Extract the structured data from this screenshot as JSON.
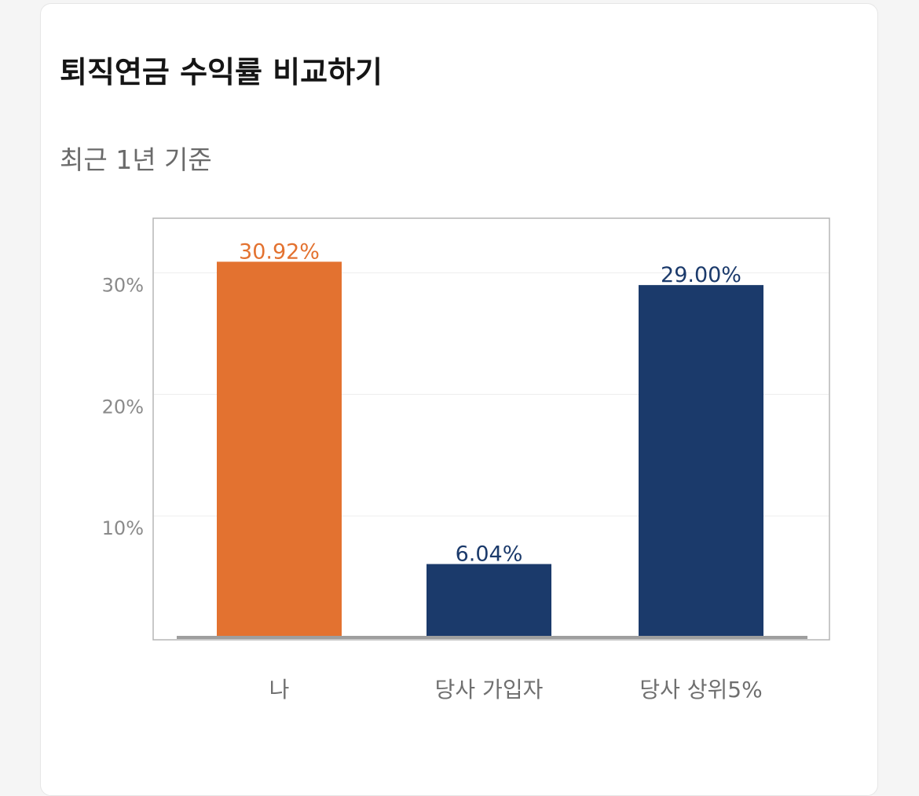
{
  "header": {
    "title": "퇴직연금 수익률 비교하기",
    "subtitle": "최근 1년 기준"
  },
  "colors": {
    "highlight": "#E37230",
    "primary": "#1B3A6B",
    "axis": "#9E9E9E",
    "grid": "#EDEDED"
  },
  "chart_data": {
    "type": "bar",
    "categories": [
      "나",
      "당사 가입자",
      "당사 상위5%"
    ],
    "values": [
      30.92,
      6.04,
      29.0
    ],
    "data_labels": [
      "30.92%",
      "6.04%",
      "29.00%"
    ],
    "bar_colors": [
      "#E37230",
      "#1B3A6B",
      "#1B3A6B"
    ],
    "yticks": [
      10,
      20,
      30
    ],
    "ytick_labels": [
      "10%",
      "20%",
      "30%"
    ],
    "ylim": [
      0,
      34.5
    ],
    "grid": true,
    "legend": "none"
  }
}
